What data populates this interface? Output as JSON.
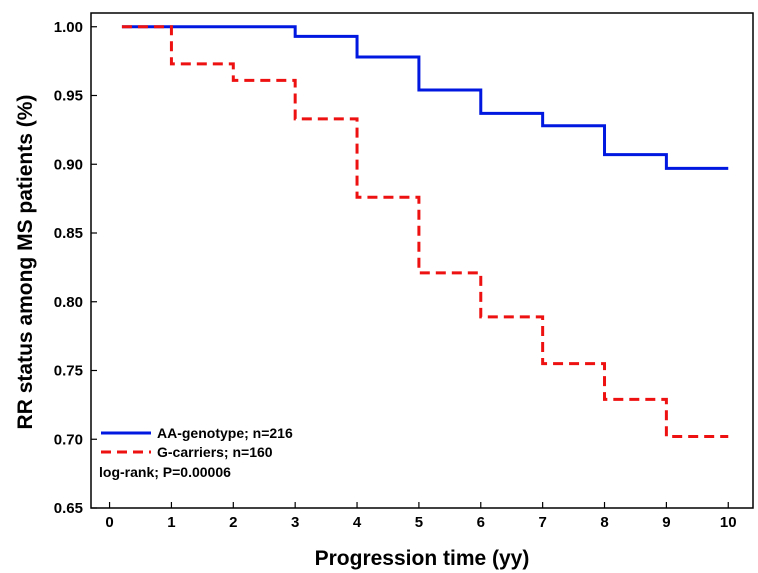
{
  "chart_data": {
    "type": "line",
    "title": "",
    "xlabel": "Progression time (yy)",
    "ylabel": "RR status among MS patients (%)",
    "xlim": [
      -0.3,
      10.4
    ],
    "ylim": [
      0.65,
      1.01
    ],
    "xticks": [
      0,
      1,
      2,
      3,
      4,
      5,
      6,
      7,
      8,
      9,
      10
    ],
    "yticks": [
      0.65,
      0.7,
      0.75,
      0.8,
      0.85,
      0.9,
      0.95,
      1.0
    ],
    "xtick_labels": [
      "0",
      "1",
      "2",
      "3",
      "4",
      "5",
      "6",
      "7",
      "8",
      "9",
      "10"
    ],
    "ytick_labels": [
      "0.65",
      "0.70",
      "0.75",
      "0.80",
      "0.85",
      "0.90",
      "0.95",
      "1.00"
    ],
    "grid": false,
    "legend_position": "bottom-left",
    "step": true,
    "series": [
      {
        "name": "AA-genotype; n=216",
        "color": "#0018e0",
        "dash": "solid",
        "x": [
          0.2,
          1,
          2,
          3,
          4,
          5,
          6,
          7,
          8,
          9,
          10
        ],
        "y": [
          1.0,
          1.0,
          1.0,
          0.993,
          0.978,
          0.954,
          0.937,
          0.928,
          0.907,
          0.897,
          0.897
        ]
      },
      {
        "name": "G-carriers; n=160",
        "color": "#ee1111",
        "dash": "dashed",
        "x": [
          0.2,
          1,
          2,
          3,
          4,
          5,
          6,
          7,
          8,
          9,
          10
        ],
        "y": [
          1.0,
          0.973,
          0.961,
          0.933,
          0.876,
          0.821,
          0.789,
          0.755,
          0.729,
          0.702,
          0.702
        ]
      }
    ],
    "annotations": [
      {
        "text": "log-rank; P=0.00006"
      }
    ]
  }
}
